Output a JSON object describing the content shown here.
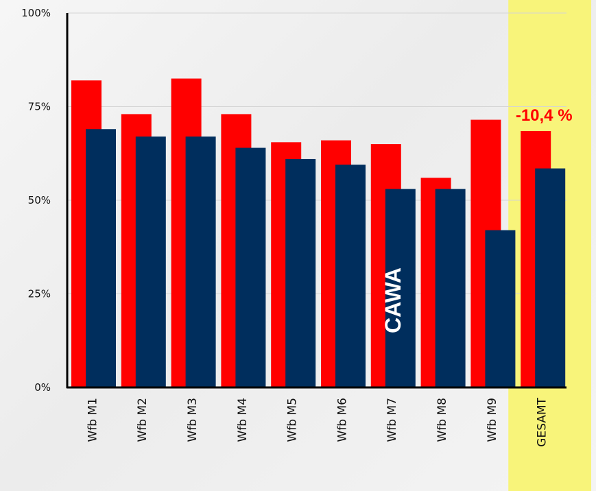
{
  "chart_data": {
    "type": "bar",
    "categories": [
      "Wfb M1",
      "Wfb M2",
      "Wfb M3",
      "Wfb M4",
      "Wfb M5",
      "Wfb M6",
      "Wfb M7",
      "Wfb M8",
      "Wfb M9",
      "GESAMT"
    ],
    "series": [
      {
        "color": "#ff0000",
        "values": [
          82,
          73,
          82.5,
          73,
          65.5,
          66,
          65,
          56,
          71.5,
          68.5
        ]
      },
      {
        "color": "#002e5d",
        "values": [
          69,
          67,
          67,
          64,
          61,
          59.5,
          53,
          53,
          42,
          58.5
        ]
      }
    ],
    "y_ticks": [
      {
        "value": 0,
        "label": "0%"
      },
      {
        "value": 25,
        "label": "25%"
      },
      {
        "value": 50,
        "label": "50%"
      },
      {
        "value": 75,
        "label": "75%"
      },
      {
        "value": 100,
        "label": "100%"
      }
    ],
    "ylim": [
      0,
      100
    ],
    "grid": true,
    "highlight": {
      "category": "GESAMT",
      "color": "#f8f47a"
    },
    "annotations": [
      {
        "text": "-10,4 %",
        "category": "GESAMT",
        "color": "#ff0000"
      },
      {
        "text": "CAWA",
        "category": "Wfb M7",
        "color": "#ffffff",
        "rotation": -90
      }
    ]
  }
}
